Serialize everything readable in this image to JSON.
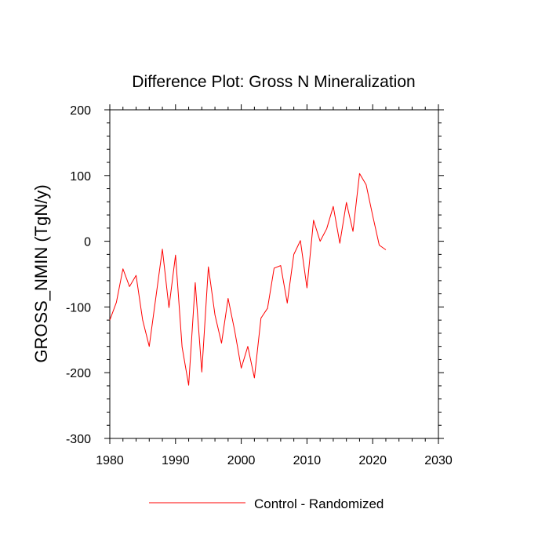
{
  "chart_data": {
    "type": "line",
    "title": "Difference Plot: Gross N Mineralization",
    "xlabel": "",
    "ylabel": "GROSS_NMIN  (TgN/y)",
    "xlim": [
      1980,
      2030
    ],
    "ylim": [
      -300,
      200
    ],
    "xticks": [
      1980,
      1990,
      2000,
      2010,
      2020,
      2030
    ],
    "yticks": [
      -300,
      -200,
      -100,
      0,
      100,
      200
    ],
    "grid": false,
    "legend_position": "bottom-center",
    "series": [
      {
        "name": "Control - Randomized",
        "color": "#ff0000",
        "x": [
          1980,
          1981,
          1982,
          1983,
          1984,
          1985,
          1986,
          1987,
          1988,
          1989,
          1990,
          1991,
          1992,
          1993,
          1994,
          1995,
          1996,
          1997,
          1998,
          1999,
          2000,
          2001,
          2002,
          2003,
          2004,
          2005,
          2006,
          2007,
          2008,
          2009,
          2010,
          2011,
          2012,
          2013,
          2014,
          2015,
          2016,
          2017,
          2018,
          2019,
          2020,
          2021,
          2022
        ],
        "values": [
          -120,
          -93,
          -42,
          -69,
          -52,
          -120,
          -160,
          -86,
          -12,
          -101,
          -21,
          -161,
          -219,
          -63,
          -199,
          -39,
          -112,
          -155,
          -87,
          -136,
          -193,
          -160,
          -208,
          -117,
          -102,
          -41,
          -37,
          -94,
          -20,
          1,
          -71,
          32,
          0,
          19,
          53,
          -3,
          59,
          15,
          103,
          86,
          39,
          -6,
          -13
        ]
      }
    ]
  }
}
